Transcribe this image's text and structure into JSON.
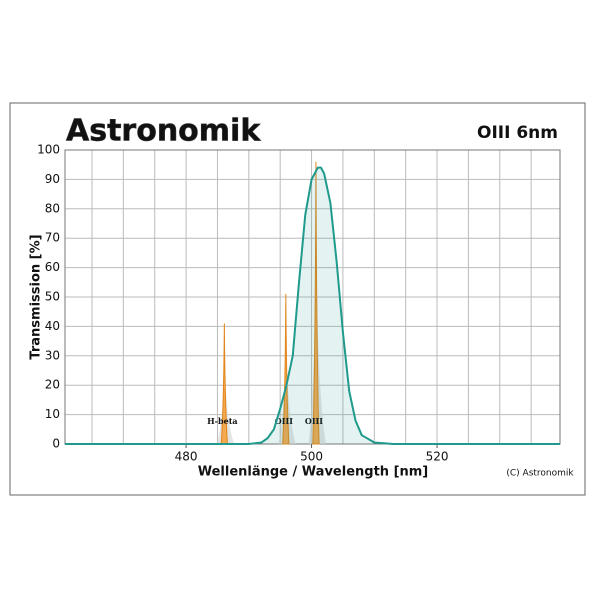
{
  "chart_data": {
    "type": "line",
    "logo": "Astronomik",
    "title": "OIII 6nm",
    "x_label": "Wellenlänge / Wavelength [nm]",
    "y_label": "Transmission [%]",
    "copyright": "(C) Astronomik",
    "xlim": [
      460.7,
      539.6
    ],
    "ylim": [
      0,
      100
    ],
    "xticks": [
      480,
      500,
      520
    ],
    "xgrid": [
      465,
      470,
      475,
      480,
      485,
      490,
      495,
      500,
      505,
      510,
      515,
      520,
      525,
      530,
      535
    ],
    "yticks": [
      0,
      10,
      20,
      30,
      40,
      50,
      60,
      70,
      80,
      90,
      100
    ],
    "grid": true,
    "series": [
      {
        "color": "#1f9a8c",
        "x": [
          460.7,
          490,
          492,
          493,
          494,
          495,
          496,
          497,
          498,
          499,
          500,
          501,
          501.5,
          502,
          503,
          504,
          505,
          506,
          507,
          508,
          510,
          513,
          539.6
        ],
        "values": [
          0,
          0,
          0.5,
          2,
          5,
          12,
          20,
          30,
          55,
          78,
          90,
          94,
          94,
          92,
          82,
          62,
          38,
          18,
          8,
          3,
          0.5,
          0,
          0
        ]
      }
    ],
    "emission_lines": [
      {
        "label": "H-beta",
        "wavelength": 486.1,
        "peak": 41
      },
      {
        "label": "OIII",
        "wavelength": 495.9,
        "peak": 51
      },
      {
        "label": "OIII",
        "wavelength": 500.7,
        "peak": 96
      }
    ]
  }
}
